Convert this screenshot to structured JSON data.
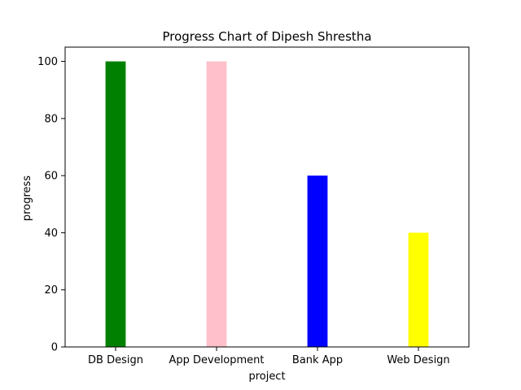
{
  "chart_data": {
    "type": "bar",
    "title": "Progress Chart of Dipesh Shrestha",
    "xlabel": "project",
    "ylabel": "progress",
    "categories": [
      "DB Design",
      "App Development",
      "Bank App",
      "Web Design"
    ],
    "values": [
      100,
      100,
      60,
      40
    ],
    "colors": [
      "#008000",
      "#ffc0cb",
      "#0000ff",
      "#ffff00"
    ],
    "ylim": [
      0,
      105
    ],
    "yticks": [
      "0",
      "20",
      "40",
      "60",
      "80",
      "100"
    ],
    "grid": false,
    "legend": "none"
  }
}
